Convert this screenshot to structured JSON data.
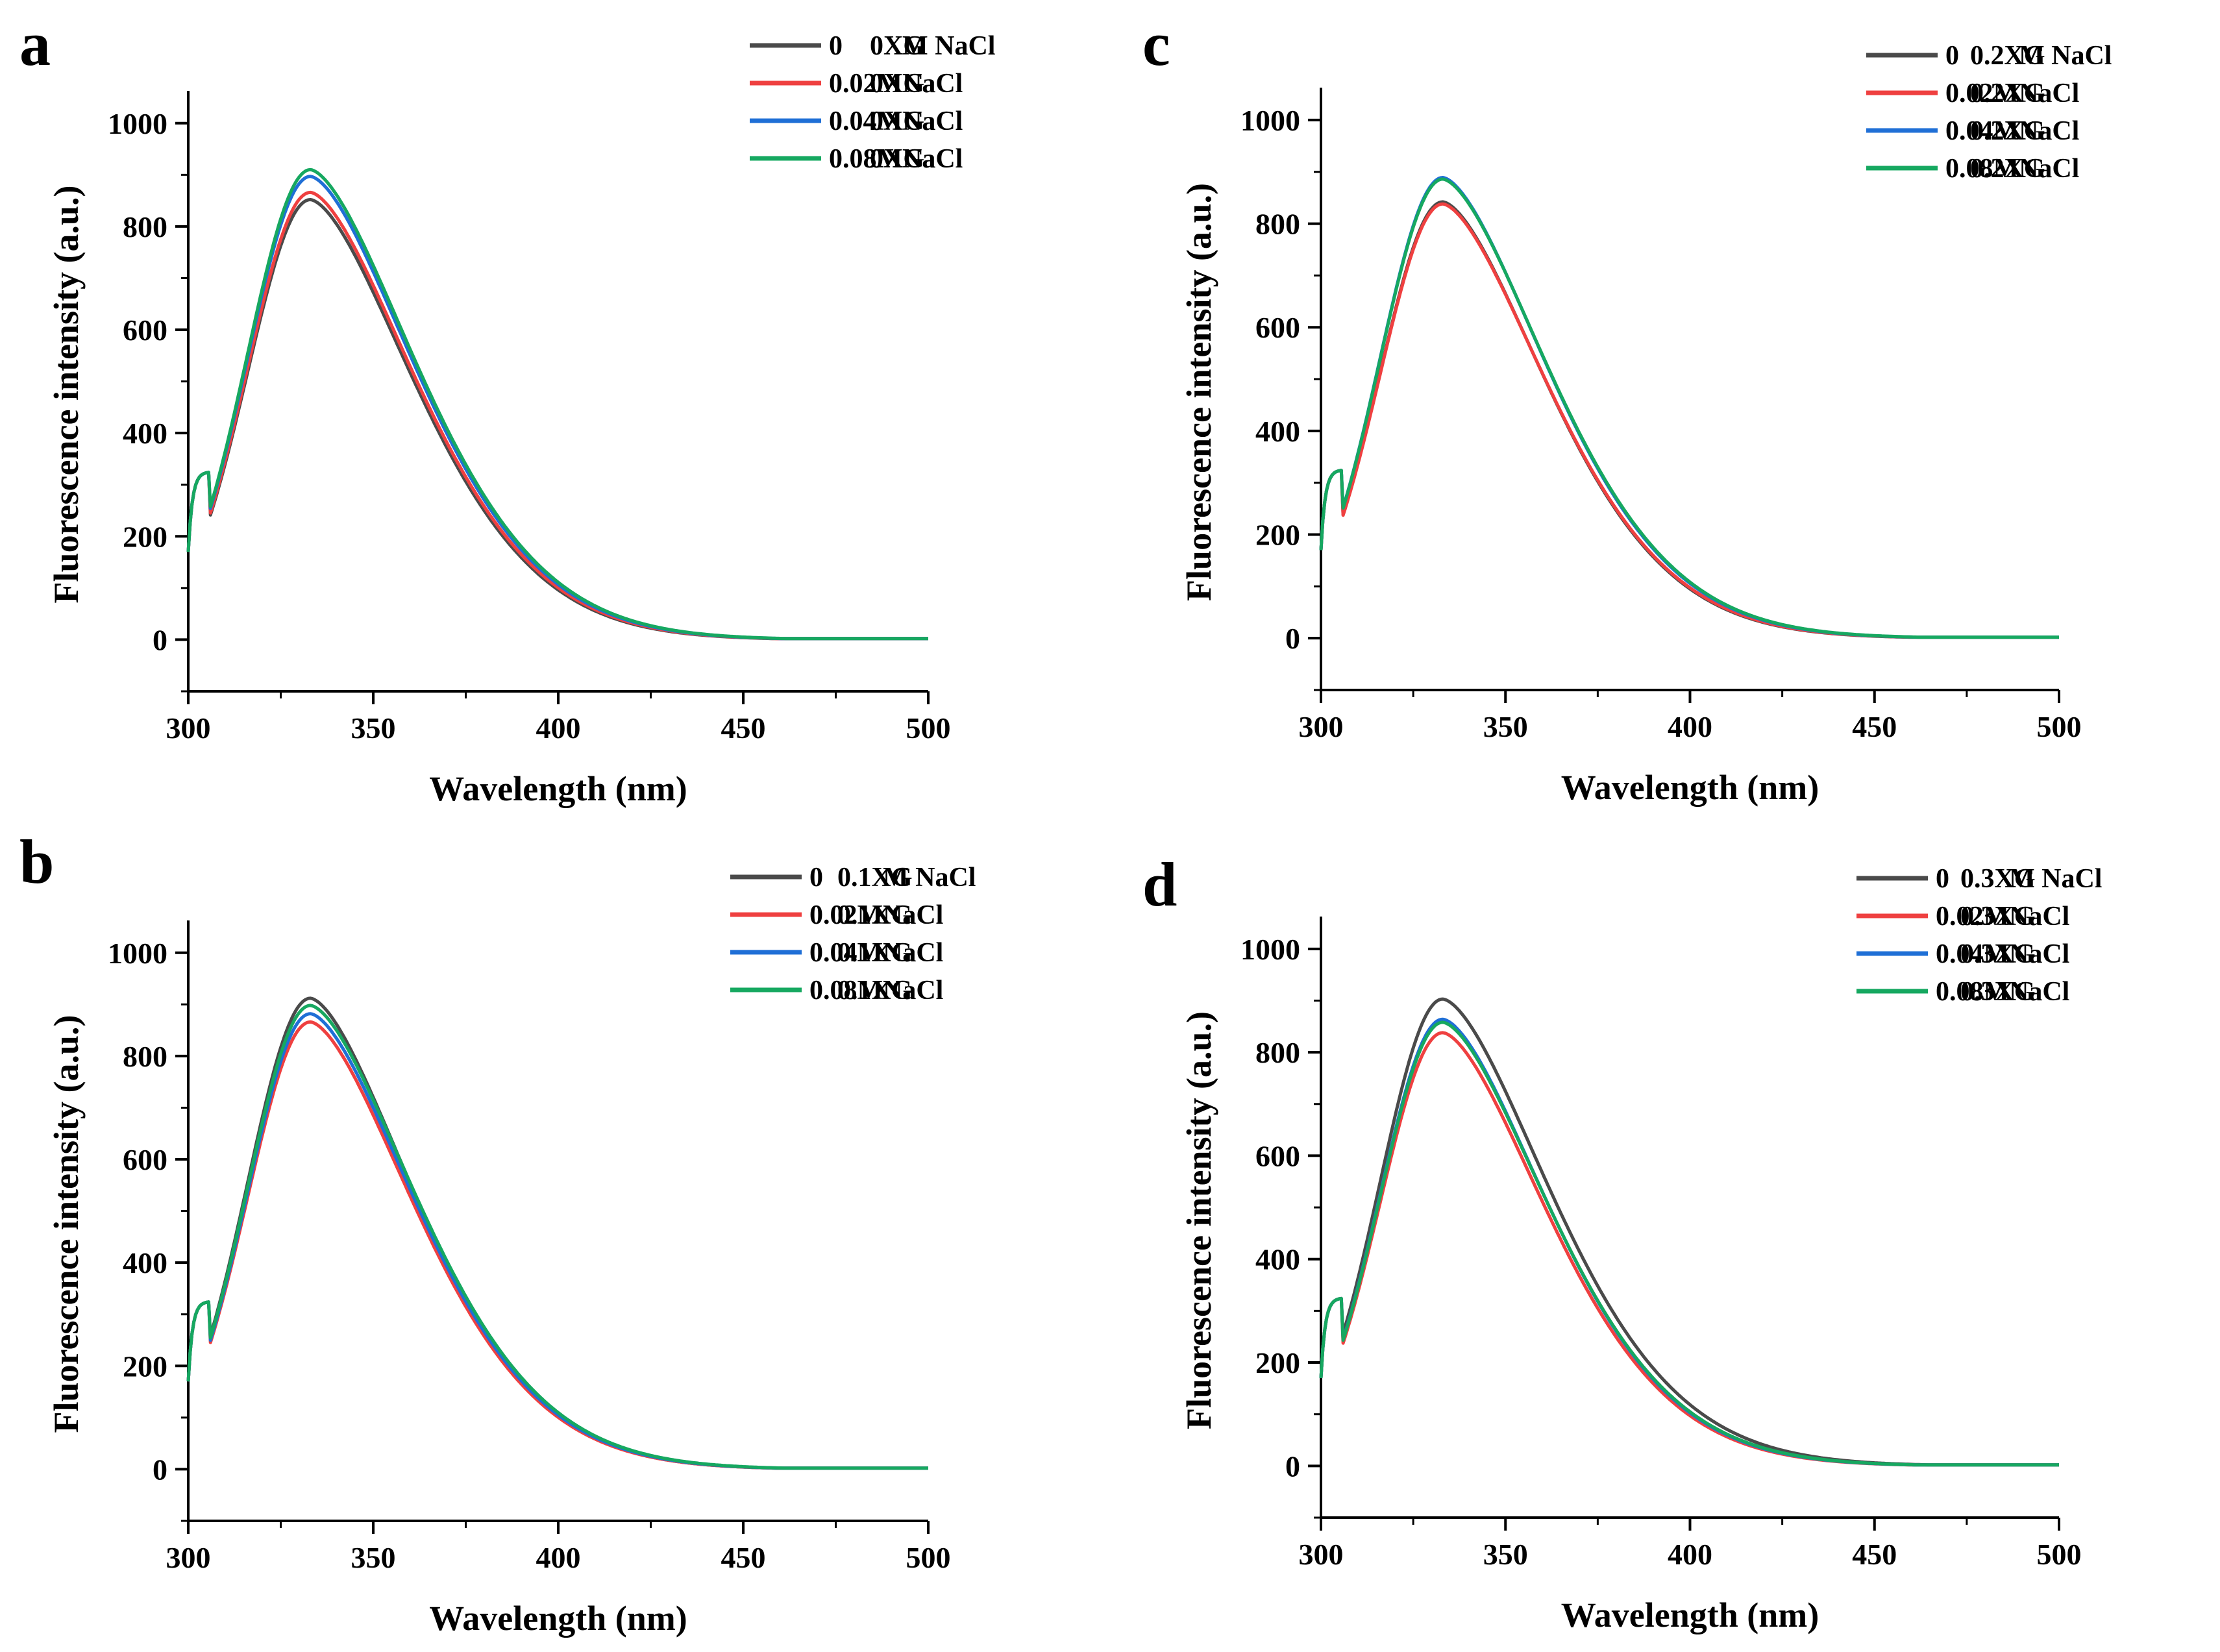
{
  "figure": {
    "description_panels": 4
  },
  "chart_data": [
    {
      "panel": "a",
      "type": "line",
      "xlabel": "Wavelength (nm)",
      "ylabel": "Fluorescence intensity (a.u.)",
      "xlim": [
        300,
        500
      ],
      "ylim": [
        -100,
        1050
      ],
      "xticks": [
        300,
        350,
        400,
        450,
        500
      ],
      "yticks": [
        0,
        200,
        400,
        600,
        800,
        1000
      ],
      "legend_position": "top-right",
      "series": [
        {
          "name": "0",
          "label_a": "0",
          "label_b": "M NaCl",
          "label_c": "0XG",
          "color": "#4a4a4a",
          "peak": 852
        },
        {
          "name": "0.02M",
          "label_a": "0.02M",
          "label_b": "NaCl",
          "label_c": "0XG",
          "color": "#ef4040",
          "peak": 866
        },
        {
          "name": "0.04M",
          "label_a": "0.04M",
          "label_b": "NaCl",
          "label_c": "0XG",
          "color": "#1f6fd6",
          "peak": 897
        },
        {
          "name": "0.08M",
          "label_a": "0.08M",
          "label_b": "NaCl",
          "label_c": "0XG",
          "color": "#16a860",
          "peak": 910
        }
      ]
    },
    {
      "panel": "b",
      "type": "line",
      "xlabel": "Wavelength (nm)",
      "ylabel": "Fluorescence intensity (a.u.)",
      "xlim": [
        300,
        500
      ],
      "ylim": [
        -100,
        1050
      ],
      "xticks": [
        300,
        350,
        400,
        450,
        500
      ],
      "yticks": [
        0,
        200,
        400,
        600,
        800,
        1000
      ],
      "legend_position": "top-right",
      "series": [
        {
          "name": "0",
          "label_a": "0",
          "label_b": "M NaCl",
          "label_c": "0.1XG",
          "color": "#4a4a4a",
          "peak": 912
        },
        {
          "name": "0.02M",
          "label_a": "0.02M",
          "label_b": "NaCl",
          "label_c": "0.1XG",
          "color": "#ef4040",
          "peak": 866
        },
        {
          "name": "0.04M",
          "label_a": "0.04M",
          "label_b": "NaCl",
          "label_c": "0.1XG",
          "color": "#1f6fd6",
          "peak": 882
        },
        {
          "name": "0.08M",
          "label_a": "0.08M",
          "label_b": "NaCl",
          "label_c": "0.1XG",
          "color": "#16a860",
          "peak": 898
        }
      ]
    },
    {
      "panel": "c",
      "type": "line",
      "xlabel": "Wavelength (nm)",
      "ylabel": "Fluorescence intensity (a.u.)",
      "xlim": [
        300,
        500
      ],
      "ylim": [
        -100,
        1050
      ],
      "xticks": [
        300,
        350,
        400,
        450,
        500
      ],
      "yticks": [
        0,
        200,
        400,
        600,
        800,
        1000
      ],
      "legend_position": "top-right",
      "series": [
        {
          "name": "0",
          "label_a": "0",
          "label_b": "M NaCl",
          "label_c": "0.2XG",
          "color": "#4a4a4a",
          "peak": 842
        },
        {
          "name": "0.02M",
          "label_a": "0.02M",
          "label_b": "NaCl",
          "label_c": "0.2XG",
          "color": "#ef4040",
          "peak": 838
        },
        {
          "name": "0.04M",
          "label_a": "0.04M",
          "label_b": "NaCl",
          "label_c": "0.2XG",
          "color": "#1f6fd6",
          "peak": 889
        },
        {
          "name": "0.08M",
          "label_a": "0.08M",
          "label_b": "NaCl",
          "label_c": "0.2XG",
          "color": "#16a860",
          "peak": 886
        }
      ]
    },
    {
      "panel": "d",
      "type": "line",
      "xlabel": "Wavelength (nm)",
      "ylabel": "Fluorescence intensity (a.u.)",
      "xlim": [
        300,
        500
      ],
      "ylim": [
        -100,
        1050
      ],
      "xticks": [
        300,
        350,
        400,
        450,
        500
      ],
      "yticks": [
        0,
        200,
        400,
        600,
        800,
        1000
      ],
      "legend_position": "top-right",
      "series": [
        {
          "name": "0",
          "label_a": "0",
          "label_b": "M NaCl",
          "label_c": "0.3XG",
          "color": "#4a4a4a",
          "peak": 903
        },
        {
          "name": "0.02M",
          "label_a": "0.02M",
          "label_b": "NaCl",
          "label_c": "0.3XG",
          "color": "#ef4040",
          "peak": 838
        },
        {
          "name": "0.04M",
          "label_a": "0.04M",
          "label_b": "NaCl",
          "label_c": "0.3XG",
          "color": "#1f6fd6",
          "peak": 864
        },
        {
          "name": "0.08M",
          "label_a": "0.08M",
          "label_b": "NaCl",
          "label_c": "0.3XG",
          "color": "#16a860",
          "peak": 858
        }
      ]
    }
  ]
}
